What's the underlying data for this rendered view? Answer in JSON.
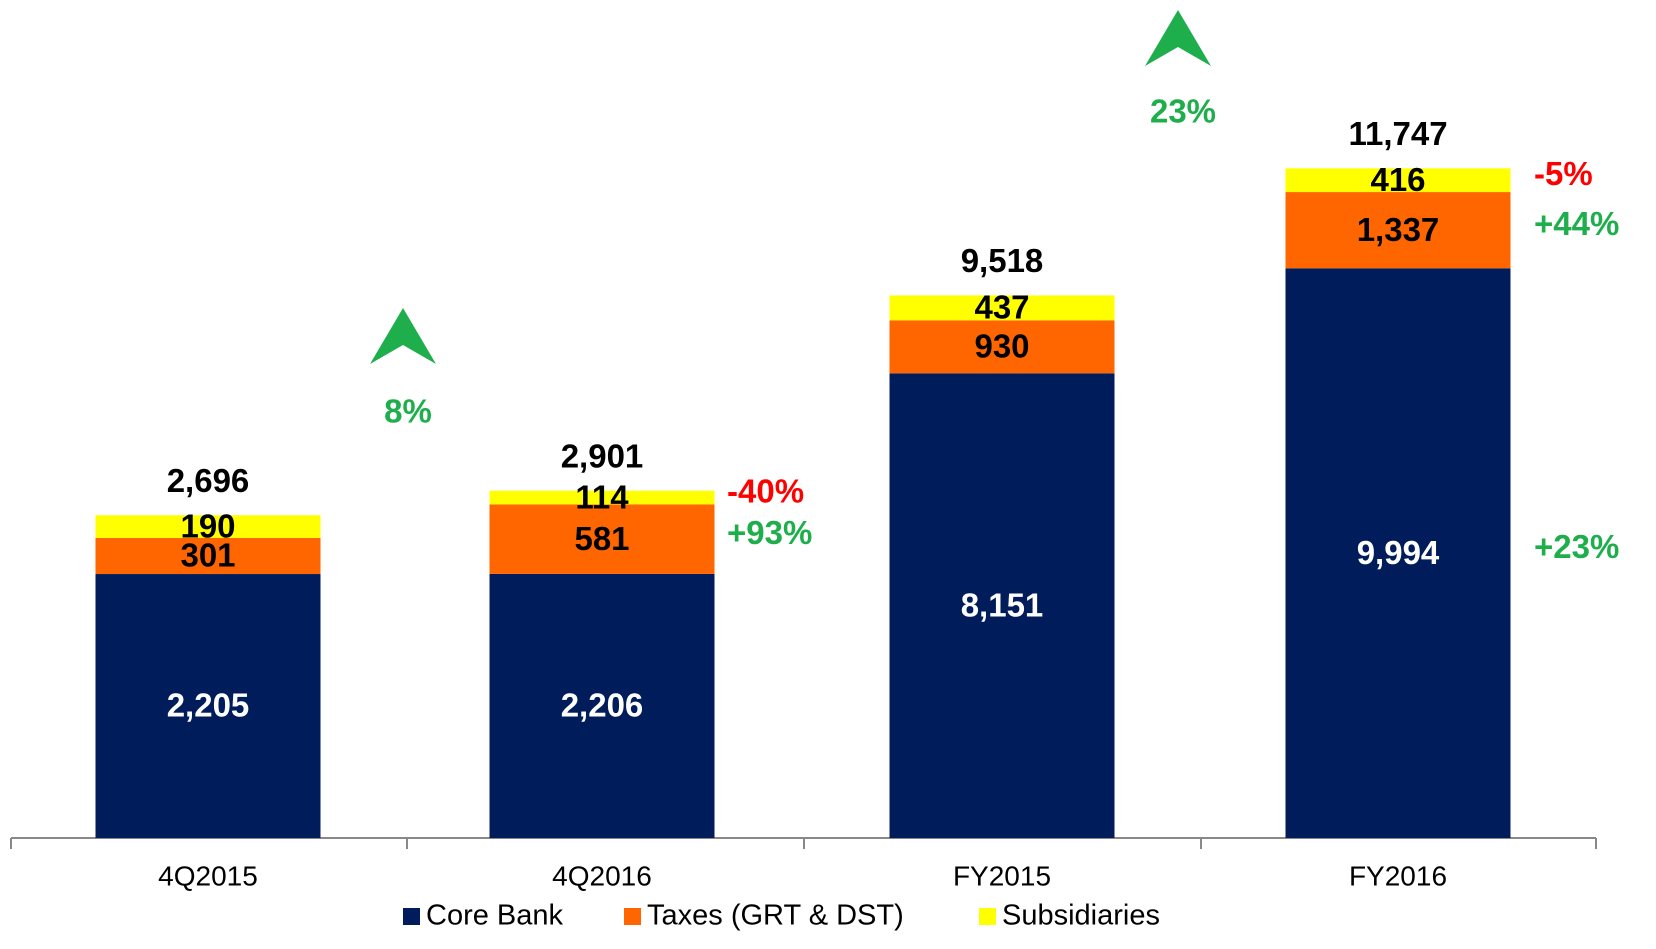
{
  "chart_data": [
    {
      "type": "bar",
      "stacked": true,
      "categories": [
        "4Q2015",
        "4Q2016"
      ],
      "ylim": [
        0,
        7000
      ],
      "series": [
        {
          "name": "Core Bank",
          "color": "#001c5a",
          "label_color": "#ffffff",
          "values": [
            2205,
            2206
          ],
          "value_labels": [
            "2,205",
            "2,206"
          ]
        },
        {
          "name": "Taxes (GRT & DST)",
          "color": "#ff6600",
          "label_color": "#000000",
          "values": [
            301,
            581
          ],
          "value_labels": [
            "301",
            "581"
          ],
          "change": "+93%",
          "change_color": "#1fae4c"
        },
        {
          "name": "Subsidiaries",
          "color": "#ffff00",
          "label_color": "#000000",
          "values": [
            190,
            114
          ],
          "value_labels": [
            "190",
            "114"
          ],
          "change": "-40%",
          "change_color": "#ff0000"
        }
      ],
      "totals": [
        2696,
        2901
      ],
      "total_labels": [
        "2,696",
        "2,901"
      ],
      "growth": "8%",
      "growth_color": "#1fae4c"
    },
    {
      "type": "bar",
      "stacked": true,
      "categories": [
        "FY2015",
        "FY2016"
      ],
      "ylim": [
        0,
        14700
      ],
      "series": [
        {
          "color": "#001c5a",
          "label_color": "#ffffff",
          "values": [
            8151,
            9994
          ],
          "value_labels": [
            "8,151",
            "9,994"
          ],
          "change": "+23%",
          "change_color": "#1fae4c"
        },
        {
          "color": "#ff6600",
          "label_color": "#000000",
          "values": [
            930,
            1337
          ],
          "value_labels": [
            "930",
            "1,337"
          ],
          "change": "+44%",
          "change_color": "#1fae4c"
        },
        {
          "color": "#ffff00",
          "label_color": "#000000",
          "values": [
            437,
            416
          ],
          "value_labels": [
            "437",
            "416"
          ],
          "change": "-5%",
          "change_color": "#ff0000"
        }
      ],
      "totals": [
        9518,
        11747
      ],
      "total_labels": [
        "9,518",
        "11,747"
      ],
      "growth": "23%",
      "growth_color": "#1fae4c"
    }
  ]
}
